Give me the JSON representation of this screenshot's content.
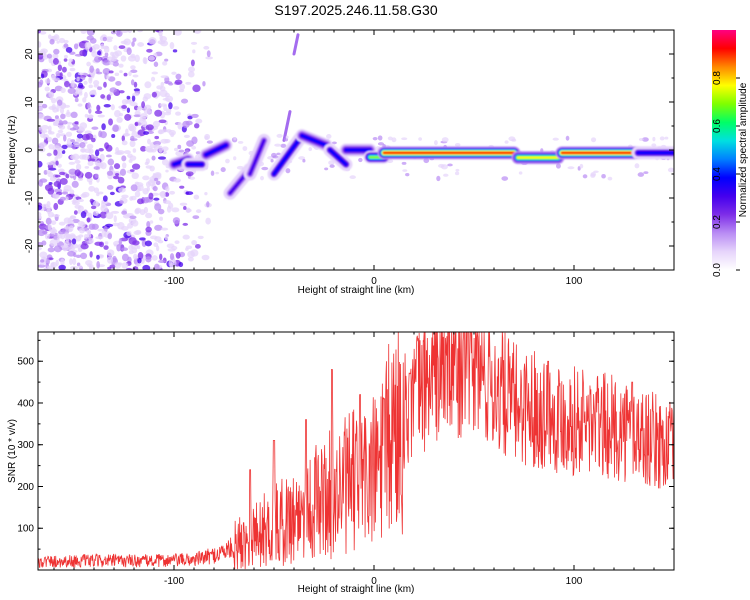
{
  "title": "S197.2025.246.11.58.G30",
  "chart_data": [
    {
      "type": "heatmap",
      "name": "spectrogram",
      "xlabel": "Height of straight line (km)",
      "ylabel": "Frequency (Hz)",
      "xlim": [
        -168,
        150
      ],
      "ylim": [
        -25,
        25
      ],
      "xticks": [
        -100,
        0,
        100
      ],
      "yticks": [
        -20,
        -10,
        0,
        10,
        20
      ],
      "colorbar": {
        "label": "Normalized spectral amplitude",
        "range": [
          0,
          1
        ],
        "ticks": [
          "0.0",
          "0.2",
          "0.4",
          "0.6",
          "0.8"
        ],
        "ticks_values": [
          0,
          0.2,
          0.4,
          0.6,
          0.8
        ],
        "colors": [
          "#ffffff",
          "#e6d4fb",
          "#b98cf4",
          "#7e2ee8",
          "#4400ee",
          "#0000ff",
          "#0080ff",
          "#00e0e0",
          "#00ff66",
          "#7fff00",
          "#ffff00",
          "#ff8800",
          "#ff0000",
          "#ff0080"
        ]
      },
      "ridge_segments": [
        {
          "x": [
            -100,
            -93
          ],
          "f": [
            -3,
            -2
          ],
          "amp": 0.4
        },
        {
          "x": [
            -93,
            -86
          ],
          "f": [
            -3,
            -3
          ],
          "amp": 0.35
        },
        {
          "x": [
            -84,
            -74
          ],
          "f": [
            -1,
            1
          ],
          "amp": 0.4
        },
        {
          "x": [
            -72,
            -62
          ],
          "f": [
            -9,
            -4
          ],
          "amp": 0.3
        },
        {
          "x": [
            -62,
            -55
          ],
          "f": [
            -5,
            2
          ],
          "amp": 0.3
        },
        {
          "x": [
            -50,
            -36
          ],
          "f": [
            -5,
            3
          ],
          "amp": 0.35
        },
        {
          "x": [
            -36,
            -24
          ],
          "f": [
            3,
            1
          ],
          "amp": 0.4
        },
        {
          "x": [
            -22,
            -14
          ],
          "f": [
            0,
            -3
          ],
          "amp": 0.35
        },
        {
          "x": [
            -14,
            -2
          ],
          "f": [
            0,
            0
          ],
          "amp": 0.4
        },
        {
          "x": [
            -2,
            5
          ],
          "f": [
            -1.5,
            -1.5
          ],
          "amp": 0.7
        },
        {
          "x": [
            5,
            70
          ],
          "f": [
            -0.6,
            -0.6
          ],
          "amp": 0.92
        },
        {
          "x": [
            72,
            92
          ],
          "f": [
            -1.6,
            -1.6
          ],
          "amp": 0.8
        },
        {
          "x": [
            94,
            132
          ],
          "f": [
            -0.6,
            -0.6
          ],
          "amp": 0.92
        },
        {
          "x": [
            132,
            150
          ],
          "f": [
            -0.6,
            -0.6
          ],
          "amp": 0.35
        }
      ],
      "noise_region": {
        "x": [
          -168,
          -82
        ],
        "f": [
          -25,
          25
        ],
        "amp": [
          0.05,
          0.3
        ]
      }
    },
    {
      "type": "line",
      "name": "snr",
      "xlabel": "Height of straight line (km)",
      "ylabel": "SNR (10 * v/v)",
      "xlim": [
        -168,
        150
      ],
      "ylim": [
        0,
        570
      ],
      "xticks": [
        -100,
        0,
        100
      ],
      "yticks": [
        100,
        200,
        300,
        400,
        500
      ],
      "color": "#ee3333",
      "baseline_profile": {
        "x": [
          -168,
          -140,
          -110,
          -90,
          -80,
          -70,
          -60,
          -50,
          -40,
          -30,
          -20,
          -10,
          0,
          10,
          20,
          30,
          40,
          50,
          60,
          70,
          80,
          90,
          100,
          110,
          120,
          130,
          140,
          150
        ],
        "y": [
          20,
          22,
          22,
          25,
          35,
          55,
          85,
          105,
          130,
          160,
          185,
          210,
          230,
          330,
          420,
          470,
          500,
          490,
          440,
          400,
          390,
          370,
          360,
          350,
          340,
          330,
          310,
          290
        ]
      },
      "peaks": [
        {
          "x": -62,
          "y": 240
        },
        {
          "x": -50,
          "y": 310
        },
        {
          "x": -34,
          "y": 360
        },
        {
          "x": -21,
          "y": 480
        },
        {
          "x": -7,
          "y": 420
        },
        {
          "x": 5,
          "y": 410
        },
        {
          "x": 18,
          "y": 470
        },
        {
          "x": 45,
          "y": 570
        },
        {
          "x": 87,
          "y": 500
        },
        {
          "x": 129,
          "y": 450
        }
      ]
    }
  ]
}
